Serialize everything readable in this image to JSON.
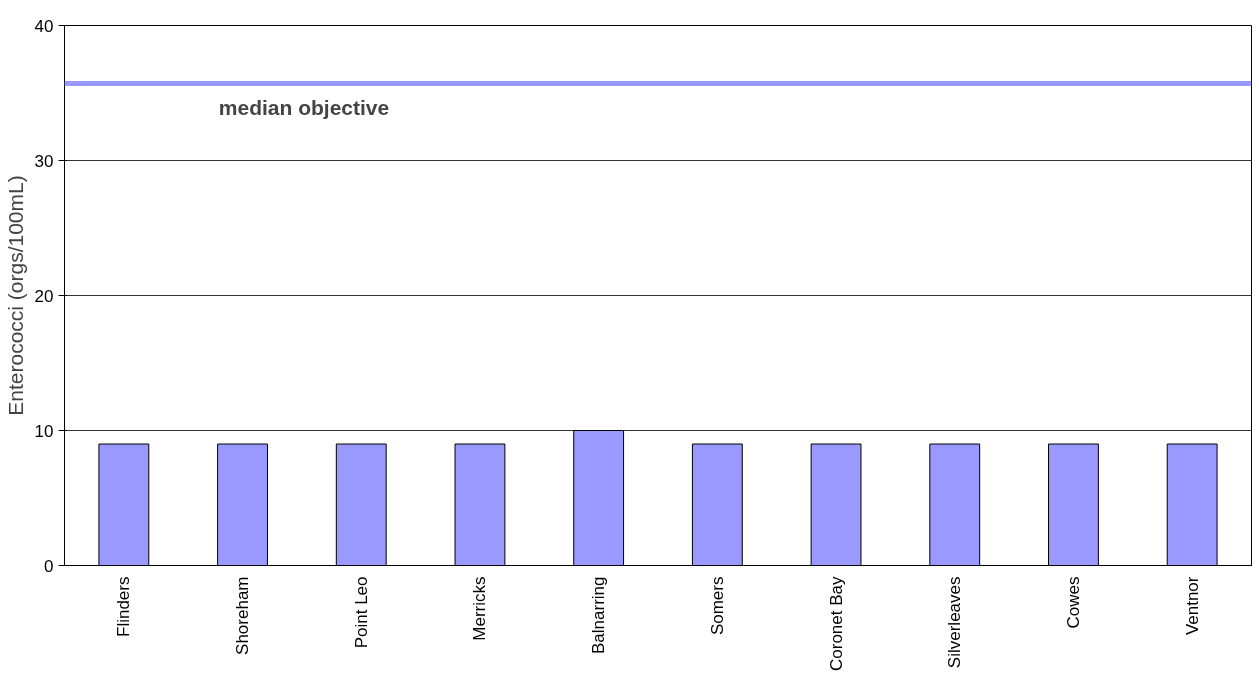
{
  "chart_data": {
    "type": "bar",
    "ylabel": "Enterococci (orgs/100mL)",
    "categories": [
      "Flinders",
      "Shoreham",
      "Point Leo",
      "Merricks",
      "Balnarring",
      "Somers",
      "Coronet Bay",
      "Silverleaves",
      "Cowes",
      "Ventnor"
    ],
    "values": [
      9,
      9,
      9,
      9,
      10,
      9,
      9,
      9,
      9,
      9
    ],
    "color": "#9999ff",
    "ylim": [
      0,
      40
    ],
    "yticks": [
      0,
      10,
      20,
      30,
      40
    ],
    "grid": "y",
    "ref_lines": [
      {
        "axis": "y",
        "value": 35.7,
        "label": "median objective",
        "color": "#9999ff"
      }
    ]
  }
}
